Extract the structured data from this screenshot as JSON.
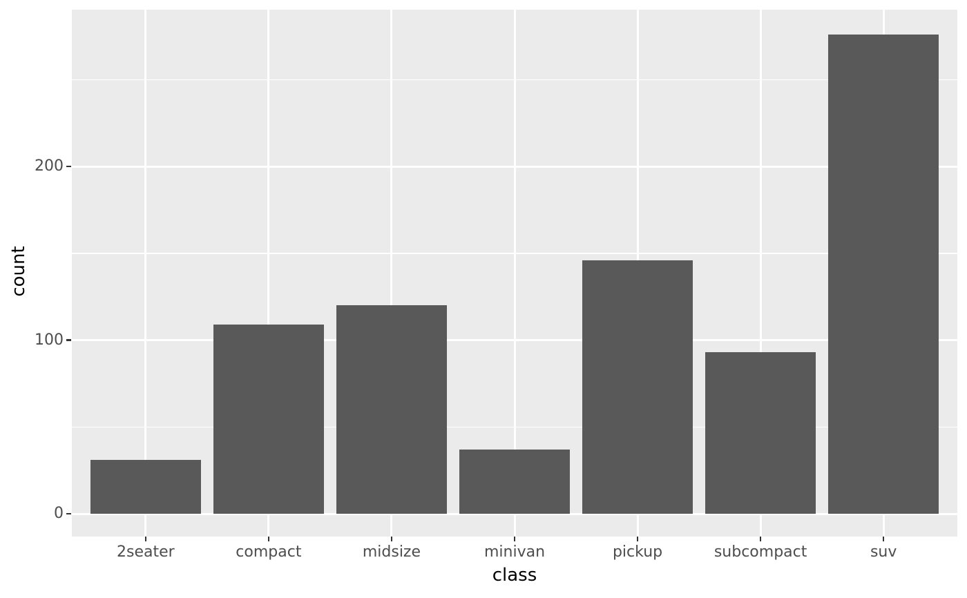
{
  "chart_data": {
    "type": "bar",
    "title": "",
    "xlabel": "class",
    "ylabel": "count",
    "categories": [
      "2seater",
      "compact",
      "midsize",
      "minivan",
      "pickup",
      "subcompact",
      "suv"
    ],
    "values": [
      31,
      109,
      120,
      37,
      146,
      93,
      276
    ],
    "y_axis": {
      "ticks": [
        0,
        100,
        200
      ],
      "tick_labels": [
        "0",
        "100",
        "200"
      ],
      "minor_ticks": [
        50,
        150,
        250
      ],
      "range": [
        0,
        290
      ]
    },
    "legend_position": "none",
    "grid": "on",
    "style": {
      "bar_fill": "#595959",
      "panel_background": "#EBEBEB",
      "grid_major_color": "#FFFFFF",
      "grid_minor_color": "#FFFFFF",
      "axis_text_color": "#4D4D4D",
      "axis_title_color": "#000000",
      "tick_mark_color": "#333333",
      "figure_background": "#FFFFFF"
    }
  }
}
